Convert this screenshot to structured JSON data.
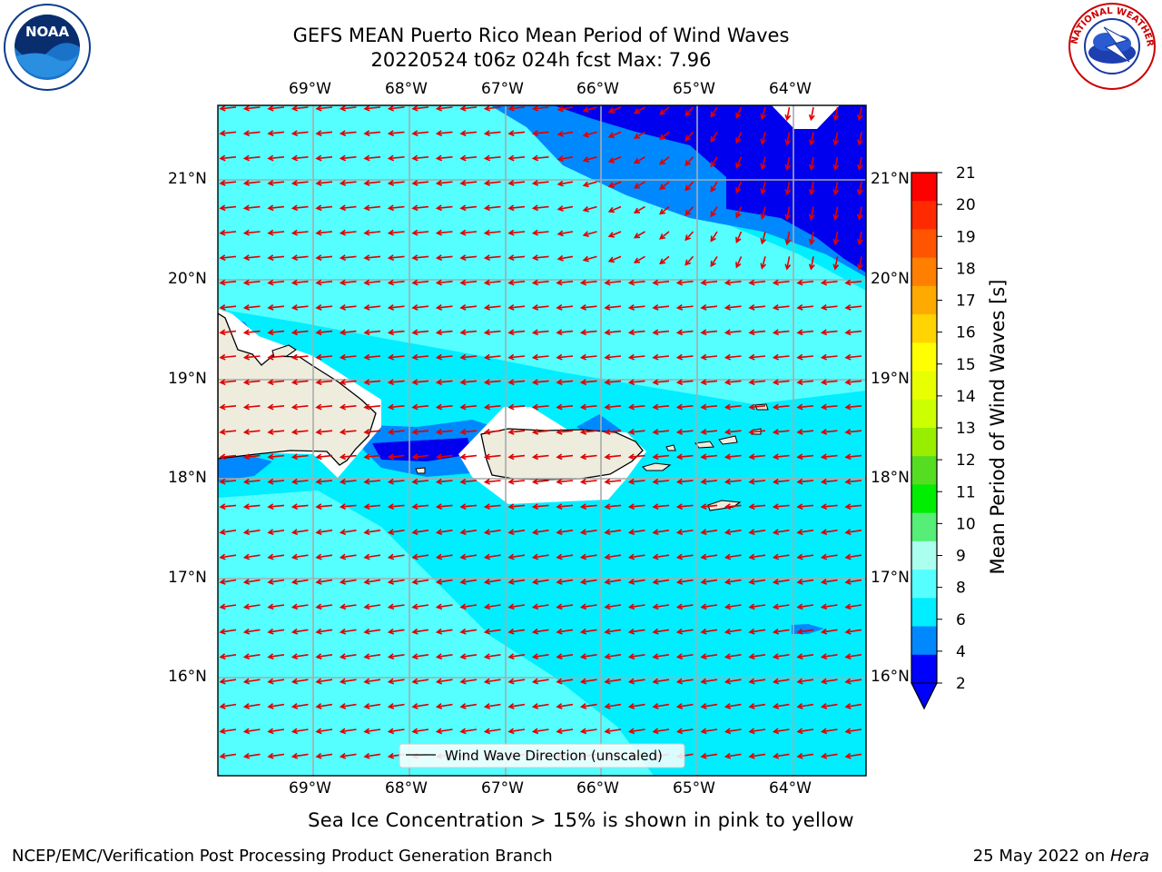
{
  "title": {
    "line1": "GEFS MEAN Puerto Rico Mean Period of Wind Waves",
    "line2": "20220524 t06z 024h fcst   Max: 7.96"
  },
  "note": "Sea Ice Concentration > 15% is shown in pink to yellow",
  "footer": {
    "left": "NCEP/EMC/Verification Post Processing Product Generation Branch",
    "right_date": "25 May 2022 on ",
    "right_host": "Hera"
  },
  "logos": {
    "noaa": "NOAA",
    "nws": "NATIONAL WEATHER SERVICE"
  },
  "map": {
    "lon_labels": [
      "69°W",
      "68°W",
      "67°W",
      "66°W",
      "65°W",
      "64°W"
    ],
    "lat_labels": [
      "21°N",
      "20°N",
      "19°N",
      "18°N",
      "17°N",
      "16°N"
    ],
    "legend_label": "Wind Wave Direction (unscaled)",
    "vector_color": "#e00000",
    "land_color": "#eeecdd"
  },
  "colorbar": {
    "label": "Mean Period of Wind Waves [s]",
    "ticks": [
      "21",
      "20",
      "19",
      "18",
      "17",
      "16",
      "15",
      "14",
      "13",
      "12",
      "11",
      "10",
      "9",
      "8",
      "6",
      "4",
      "2"
    ],
    "colors": [
      "#ff0000",
      "#ff2a00",
      "#ff5500",
      "#ff7f00",
      "#ffaa00",
      "#ffd400",
      "#ffff00",
      "#e8ff00",
      "#ccff00",
      "#99ee00",
      "#55dd22",
      "#00ee00",
      "#55ee77",
      "#aaffee",
      "#55ffff",
      "#00eeff",
      "#0088ff",
      "#0000ff"
    ]
  }
}
